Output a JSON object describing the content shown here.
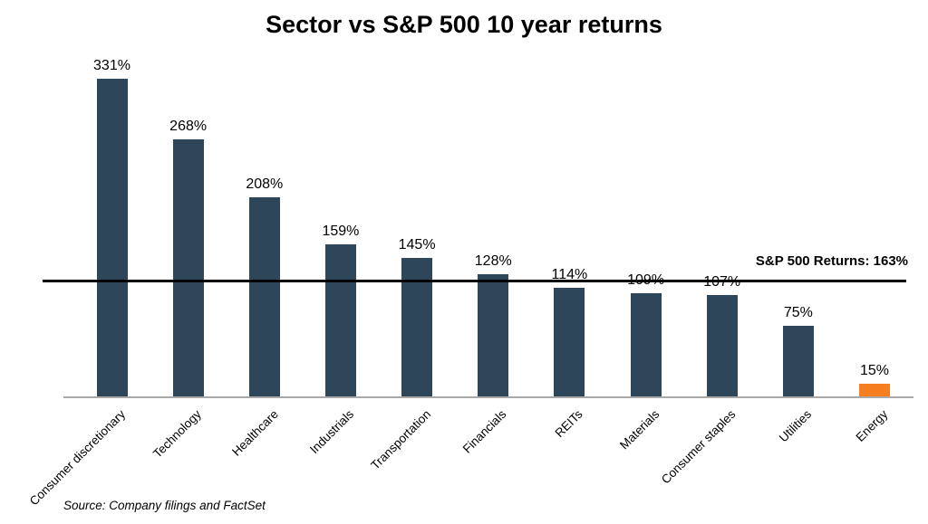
{
  "chart_data": {
    "type": "bar",
    "title": "Sector vs S&P 500 10 year returns",
    "categories": [
      "Consumer discretionary",
      "Technology",
      "Healthcare",
      "Industrials",
      "Transportation",
      "Financials",
      "REITs",
      "Materials",
      "Consumer staples",
      "Utilities",
      "Energy"
    ],
    "values": [
      331,
      268,
      208,
      159,
      145,
      128,
      114,
      109,
      107,
      75,
      15
    ],
    "value_labels": [
      "331%",
      "268%",
      "208%",
      "159%",
      "145%",
      "128%",
      "114%",
      "109%",
      "107%",
      "75%",
      "15%"
    ],
    "ylim": [
      0,
      350
    ],
    "xlabel": "",
    "ylabel": "",
    "grid": false,
    "legend": false,
    "bar_color_default": "#2D4659",
    "bar_color_highlight": "#F57E20",
    "highlight_category": "Energy",
    "sp500_line": {
      "label": "S&P 500 Returns: 163%",
      "value": 163,
      "color": "#000000"
    },
    "axis_color": "#A9A9A9",
    "source": "Source: Company filings and FactSet"
  }
}
